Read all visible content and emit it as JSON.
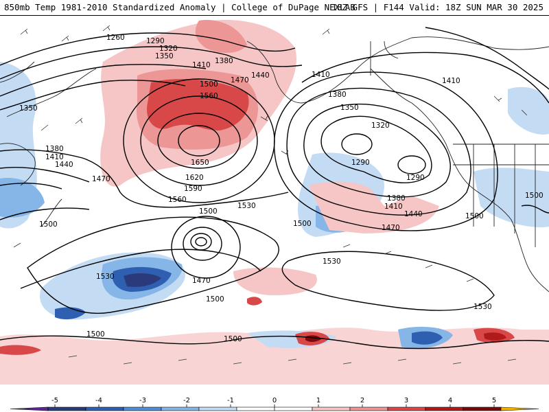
{
  "header": {
    "title_left": "850mb Temp 1981-2010 Standardized Anomaly | College of DuPage NEXLAB",
    "title_right": "18Z GFS | F144 Valid: 18Z SUN MAR 30 2025"
  },
  "contour_labels": [
    "1260",
    "1290",
    "1320",
    "1350",
    "1380",
    "1410",
    "1440",
    "1470",
    "1500",
    "1530",
    "1560",
    "1590",
    "1620",
    "1650"
  ],
  "colorbar": {
    "ticks": [
      "-5",
      "-4",
      "-3",
      "-2",
      "-1",
      "0",
      "1",
      "2",
      "3",
      "4",
      "5"
    ],
    "colors": [
      "#5a2b8c",
      "#2a3a7a",
      "#2e5fb0",
      "#4f8fd6",
      "#86b6e8",
      "#c3dcf4",
      "#ffffff",
      "#ffffff",
      "#f6c6c6",
      "#ec9696",
      "#d94848",
      "#b01a1a",
      "#7a0a0a",
      "#f0b400"
    ]
  },
  "map_colors": {
    "cold_deep": "#2a3a7a",
    "cold_mid": "#2e5fb0",
    "cold_light": "#86b6e8",
    "cold_pale": "#c3dcf4",
    "warm_pale": "#f6c6c6",
    "warm_mid": "#ec9696",
    "warm_strong": "#d94848",
    "warm_deep": "#b01a1a"
  }
}
